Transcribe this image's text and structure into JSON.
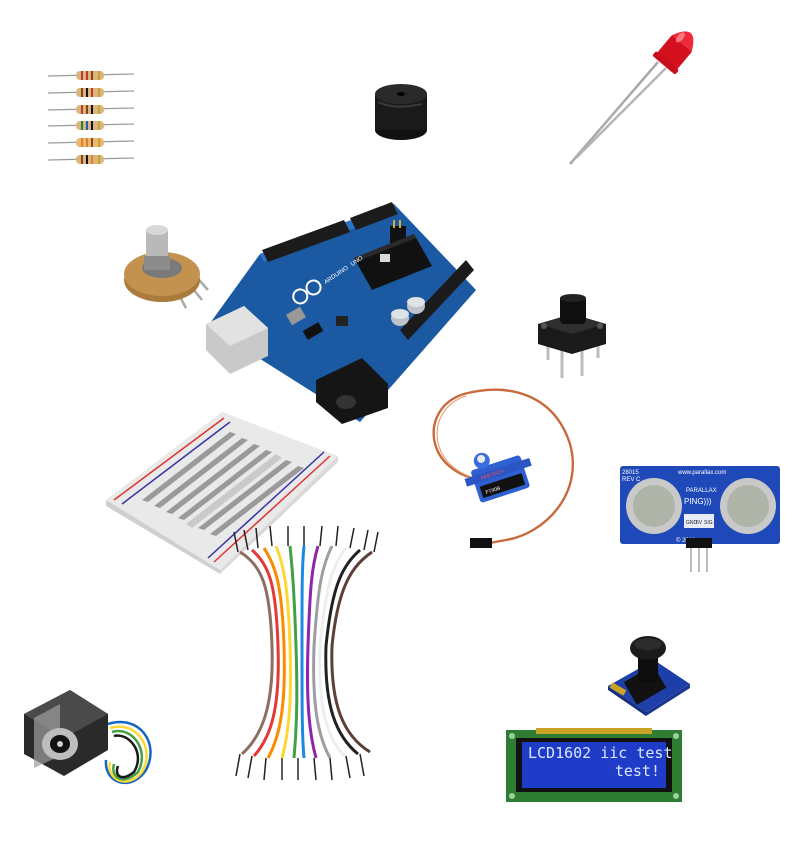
{
  "components": {
    "resistors": {
      "label": "resistors"
    },
    "buzzer": {
      "label": "buzzer"
    },
    "led": {
      "label": "red LED"
    },
    "potentiometer": {
      "label": "potentiometer"
    },
    "arduino": {
      "brand": "ARDUINO",
      "model": "UNO"
    },
    "push_button": {
      "label": "push button"
    },
    "servo": {
      "brand": "FEETECH",
      "model": "FT90B"
    },
    "breadboard": {
      "label": "breadboard"
    },
    "ultrasonic": {
      "part": "28015",
      "rev": "REV C",
      "site": "www.parallax.com",
      "brand": "PARALLAX",
      "name": "PING)))",
      "year": "© 2011",
      "pins": [
        "GND",
        "5V",
        "SIG"
      ]
    },
    "jumper_wires": {
      "label": "jumper wires"
    },
    "stepper_motor": {
      "label": "stepper motor"
    },
    "joystick": {
      "label": "joystick module"
    },
    "lcd": {
      "line1": "LCD1602 iic test",
      "line2": "test!"
    }
  },
  "colors": {
    "pcb_blue": "#1d5fa8",
    "lcd_blue": "#1f3cc9",
    "led_red": "#e8182b",
    "header_black": "#1b1b1b",
    "servo_blue": "#2f5fd0"
  }
}
